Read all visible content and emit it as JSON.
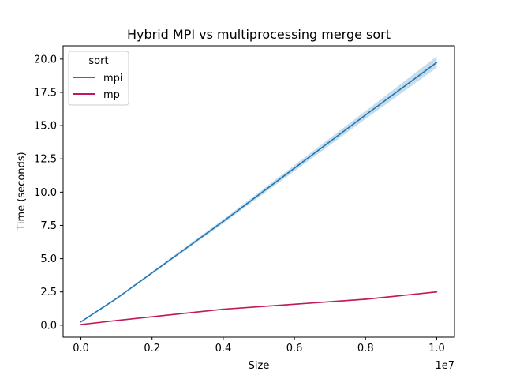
{
  "chart_data": {
    "type": "line",
    "title": "Hybrid MPI vs multiprocessing merge sort",
    "xlabel": "Size",
    "ylabel": "Time (seconds)",
    "x_offset_label": "1e7",
    "xlim": [
      -0.05,
      1.05
    ],
    "ylim": [
      -0.9,
      21.0
    ],
    "x_ticks": [
      0.0,
      0.2,
      0.4,
      0.6,
      0.8,
      1.0
    ],
    "x_tick_labels": [
      "0.0",
      "0.2",
      "0.4",
      "0.6",
      "0.8",
      "1.0"
    ],
    "y_ticks": [
      0.0,
      2.5,
      5.0,
      7.5,
      10.0,
      12.5,
      15.0,
      17.5,
      20.0
    ],
    "y_tick_labels": [
      "0.0",
      "2.5",
      "5.0",
      "7.5",
      "10.0",
      "12.5",
      "15.0",
      "17.5",
      "20.0"
    ],
    "grid": false,
    "legend": {
      "title": "sort",
      "position": "upper-left"
    },
    "series": [
      {
        "name": "mpi",
        "color": "#1f77b4",
        "x": [
          0.0,
          0.1,
          0.4,
          0.8,
          1.0
        ],
        "y": [
          0.25,
          2.0,
          7.8,
          15.8,
          19.75
        ],
        "ci_low": [
          0.2,
          1.95,
          7.65,
          15.5,
          19.35
        ],
        "ci_high": [
          0.32,
          2.08,
          7.95,
          16.1,
          20.2
        ]
      },
      {
        "name": "mp",
        "color": "#c2185b",
        "x": [
          0.0,
          0.1,
          0.4,
          0.8,
          1.0
        ],
        "y": [
          0.05,
          0.35,
          1.2,
          1.95,
          2.5
        ],
        "ci_low": [
          0.04,
          0.32,
          1.15,
          1.9,
          2.45
        ],
        "ci_high": [
          0.07,
          0.38,
          1.25,
          2.0,
          2.55
        ]
      }
    ]
  }
}
